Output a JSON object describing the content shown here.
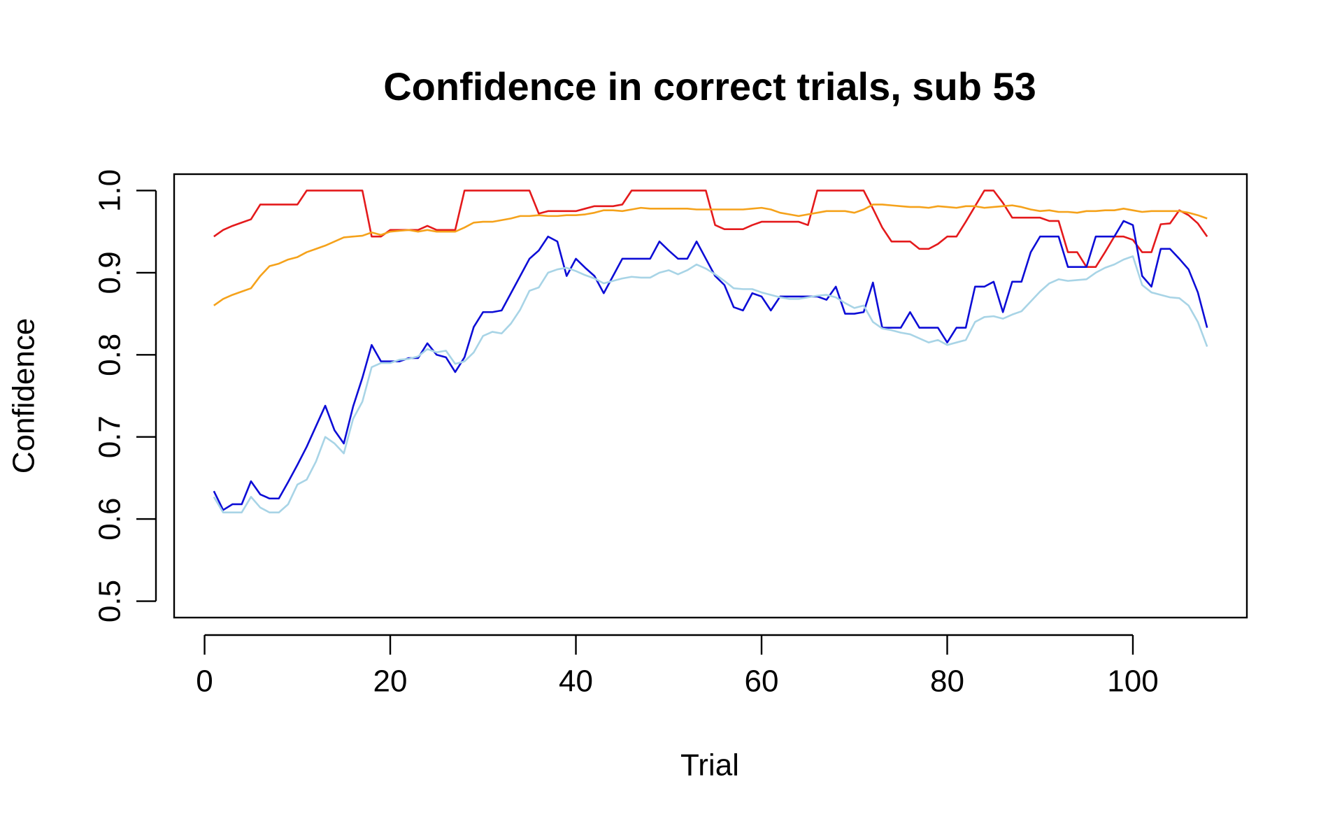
{
  "chart_data": {
    "type": "line",
    "title": "Confidence in correct trials, sub 53",
    "xlabel": "Trial",
    "ylabel": "Confidence",
    "x": [
      1,
      2,
      3,
      4,
      5,
      6,
      7,
      8,
      9,
      10,
      11,
      12,
      13,
      14,
      15,
      16,
      17,
      18,
      19,
      20,
      21,
      22,
      23,
      24,
      25,
      26,
      27,
      28,
      29,
      30,
      31,
      32,
      33,
      34,
      35,
      36,
      37,
      38,
      39,
      40,
      41,
      42,
      43,
      44,
      45,
      46,
      47,
      48,
      49,
      50,
      51,
      52,
      53,
      54,
      55,
      56,
      57,
      58,
      59,
      60,
      61,
      62,
      63,
      64,
      65,
      66,
      67,
      68,
      69,
      70,
      71,
      72,
      73,
      74,
      75,
      76,
      77,
      78,
      79,
      80,
      81,
      82,
      83,
      84,
      85,
      86,
      87,
      88,
      89,
      90,
      91,
      92,
      93,
      94,
      95,
      96,
      97,
      98,
      99,
      100,
      101,
      102,
      103,
      104,
      105,
      106,
      107,
      108
    ],
    "series": [
      {
        "color": "#e41a1c",
        "values": [
          0.944,
          0.952,
          0.957,
          0.961,
          0.965,
          0.983,
          0.983,
          0.983,
          0.983,
          0.983,
          1,
          1,
          1,
          1,
          1,
          1,
          1,
          0.944,
          0.944,
          0.952,
          0.952,
          0.952,
          0.952,
          0.957,
          0.952,
          0.952,
          0.952,
          1,
          1,
          1,
          1,
          1,
          1,
          1,
          1,
          0.972,
          0.975,
          0.975,
          0.975,
          0.975,
          0.978,
          0.981,
          0.981,
          0.981,
          0.983,
          1,
          1,
          1,
          1,
          1,
          1,
          1,
          1,
          1,
          0.958,
          0.953,
          0.953,
          0.953,
          0.958,
          0.962,
          0.962,
          0.962,
          0.962,
          0.962,
          0.958,
          1,
          1,
          1,
          1,
          1,
          1,
          0.978,
          0.955,
          0.938,
          0.938,
          0.938,
          0.929,
          0.929,
          0.935,
          0.944,
          0.944,
          0.962,
          0.981,
          1,
          1,
          0.985,
          0.967,
          0.967,
          0.967,
          0.967,
          0.963,
          0.963,
          0.925,
          0.925,
          0.907,
          0.907,
          0.925,
          0.944,
          0.944,
          0.94,
          0.925,
          0.925,
          0.959,
          0.96,
          0.976,
          0.97,
          0.96,
          0.944
        ]
      },
      {
        "color": "#f5a21b",
        "values": [
          0.86,
          0.868,
          0.873,
          0.877,
          0.881,
          0.896,
          0.908,
          0.911,
          0.916,
          0.919,
          0.925,
          0.929,
          0.933,
          0.938,
          0.943,
          0.944,
          0.945,
          0.949,
          0.946,
          0.95,
          0.951,
          0.952,
          0.95,
          0.952,
          0.95,
          0.95,
          0.95,
          0.955,
          0.961,
          0.962,
          0.962,
          0.964,
          0.966,
          0.969,
          0.969,
          0.97,
          0.969,
          0.969,
          0.97,
          0.97,
          0.971,
          0.973,
          0.976,
          0.976,
          0.975,
          0.977,
          0.979,
          0.978,
          0.978,
          0.978,
          0.978,
          0.978,
          0.977,
          0.977,
          0.977,
          0.977,
          0.977,
          0.977,
          0.978,
          0.979,
          0.977,
          0.973,
          0.971,
          0.969,
          0.971,
          0.973,
          0.975,
          0.975,
          0.975,
          0.973,
          0.977,
          0.983,
          0.983,
          0.982,
          0.981,
          0.98,
          0.98,
          0.979,
          0.981,
          0.98,
          0.979,
          0.981,
          0.981,
          0.979,
          0.98,
          0.981,
          0.982,
          0.98,
          0.977,
          0.975,
          0.976,
          0.974,
          0.974,
          0.973,
          0.975,
          0.975,
          0.976,
          0.976,
          0.978,
          0.976,
          0.974,
          0.975,
          0.975,
          0.975,
          0.975,
          0.973,
          0.97,
          0.966
        ]
      },
      {
        "color": "#0d0dd6",
        "values": [
          0.634,
          0.611,
          0.618,
          0.618,
          0.646,
          0.63,
          0.625,
          0.625,
          0.645,
          0.666,
          0.688,
          0.713,
          0.738,
          0.708,
          0.692,
          0.737,
          0.772,
          0.812,
          0.792,
          0.792,
          0.792,
          0.796,
          0.796,
          0.814,
          0.8,
          0.797,
          0.779,
          0.797,
          0.834,
          0.852,
          0.852,
          0.854,
          0.875,
          0.896,
          0.917,
          0.927,
          0.944,
          0.938,
          0.896,
          0.917,
          0.906,
          0.896,
          0.875,
          0.896,
          0.917,
          0.917,
          0.917,
          0.917,
          0.938,
          0.927,
          0.917,
          0.917,
          0.938,
          0.917,
          0.896,
          0.885,
          0.858,
          0.854,
          0.875,
          0.871,
          0.854,
          0.871,
          0.871,
          0.871,
          0.871,
          0.871,
          0.867,
          0.883,
          0.85,
          0.85,
          0.852,
          0.888,
          0.833,
          0.833,
          0.833,
          0.852,
          0.833,
          0.833,
          0.833,
          0.815,
          0.833,
          0.833,
          0.883,
          0.883,
          0.889,
          0.852,
          0.889,
          0.889,
          0.925,
          0.944,
          0.944,
          0.944,
          0.907,
          0.907,
          0.907,
          0.944,
          0.944,
          0.944,
          0.963,
          0.958,
          0.896,
          0.883,
          0.929,
          0.929,
          0.917,
          0.904,
          0.876,
          0.833
        ]
      },
      {
        "color": "#a8d4e6",
        "values": [
          0.627,
          0.608,
          0.608,
          0.608,
          0.627,
          0.614,
          0.608,
          0.608,
          0.618,
          0.642,
          0.648,
          0.67,
          0.7,
          0.692,
          0.68,
          0.722,
          0.743,
          0.785,
          0.79,
          0.79,
          0.794,
          0.795,
          0.798,
          0.807,
          0.803,
          0.805,
          0.789,
          0.792,
          0.803,
          0.823,
          0.828,
          0.826,
          0.838,
          0.855,
          0.878,
          0.882,
          0.9,
          0.904,
          0.906,
          0.902,
          0.897,
          0.893,
          0.887,
          0.89,
          0.893,
          0.895,
          0.894,
          0.894,
          0.9,
          0.903,
          0.898,
          0.903,
          0.91,
          0.905,
          0.898,
          0.89,
          0.881,
          0.88,
          0.88,
          0.876,
          0.873,
          0.87,
          0.868,
          0.868,
          0.87,
          0.872,
          0.873,
          0.87,
          0.863,
          0.857,
          0.86,
          0.84,
          0.832,
          0.83,
          0.827,
          0.825,
          0.82,
          0.815,
          0.818,
          0.812,
          0.815,
          0.818,
          0.84,
          0.846,
          0.847,
          0.844,
          0.849,
          0.853,
          0.865,
          0.877,
          0.887,
          0.892,
          0.89,
          0.891,
          0.892,
          0.9,
          0.906,
          0.91,
          0.916,
          0.92,
          0.885,
          0.876,
          0.873,
          0.87,
          0.869,
          0.86,
          0.84,
          0.81
        ]
      }
    ],
    "xlim": [
      -3.28,
      112.28
    ],
    "ylim": [
      0.48,
      1.02
    ],
    "xticks": [
      0,
      20,
      40,
      60,
      80,
      100
    ],
    "yticks": [
      {
        "value": 0.5,
        "label": "0.5"
      },
      {
        "value": 0.6,
        "label": "0.6"
      },
      {
        "value": 0.7,
        "label": "0.7"
      },
      {
        "value": 0.8,
        "label": "0.8"
      },
      {
        "value": 0.9,
        "label": "0.9"
      },
      {
        "value": 1.0,
        "label": "1.0"
      }
    ]
  }
}
